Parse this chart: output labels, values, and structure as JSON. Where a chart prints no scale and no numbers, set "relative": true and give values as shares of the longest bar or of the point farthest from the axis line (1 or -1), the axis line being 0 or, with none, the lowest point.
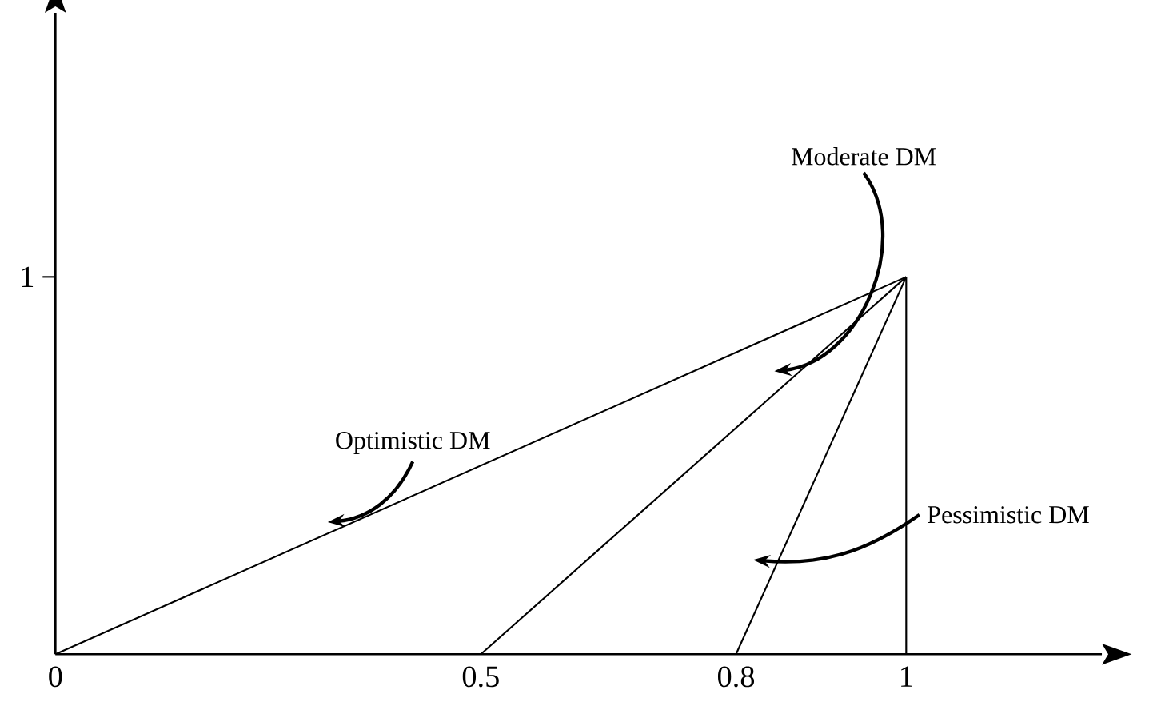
{
  "chart_data": {
    "type": "line",
    "series": [
      {
        "name": "Optimistic DM",
        "color": "#000000",
        "x": [
          0,
          1
        ],
        "values": [
          0,
          1
        ]
      },
      {
        "name": "Moderate DM",
        "color": "#000000",
        "x": [
          0.5,
          1
        ],
        "values": [
          0,
          1
        ]
      },
      {
        "name": "Pessimistic DM",
        "color": "#000000",
        "x": [
          0.8,
          1
        ],
        "values": [
          0,
          1
        ]
      }
    ],
    "ref_lines": [
      {
        "axis": "x",
        "value": 1,
        "color": "#000000",
        "line_style": "solid"
      }
    ],
    "xlim": [
      0,
      1.23
    ],
    "relative": true,
    "annotations": [
      "1"
    ],
    "xticks": [
      0,
      0.5,
      0.8,
      1
    ],
    "grid": false,
    "legend": false,
    "marker": "none",
    "line_style": "solid"
  }
}
